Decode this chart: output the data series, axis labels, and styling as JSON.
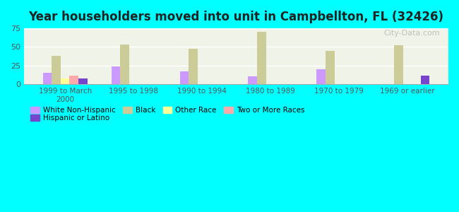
{
  "title": "Year householders moved into unit in Campbellton, FL (32426)",
  "background_color": "#00FFFF",
  "plot_bg_color": "#f0f4e8",
  "categories": [
    "1999 to March\n2000",
    "1995 to 1998",
    "1990 to 1994",
    "1980 to 1989",
    "1970 to 1979",
    "1969 or earlier"
  ],
  "series": {
    "White Non-Hispanic": {
      "color": "#cc99ff",
      "values": [
        15,
        24,
        17,
        11,
        20,
        0
      ]
    },
    "Black": {
      "color": "#cccc99",
      "values": [
        38,
        53,
        48,
        70,
        45,
        52
      ]
    },
    "Other Race": {
      "color": "#ffff99",
      "values": [
        8,
        0,
        0,
        0,
        0,
        0
      ]
    },
    "Two or More Races": {
      "color": "#ffaaaa",
      "values": [
        12,
        0,
        0,
        0,
        0,
        0
      ]
    },
    "Hispanic or Latino": {
      "color": "#7744cc",
      "values": [
        8,
        0,
        0,
        0,
        0,
        12
      ]
    }
  },
  "ylim": [
    0,
    75
  ],
  "yticks": [
    0,
    25,
    50,
    75
  ],
  "watermark": "City-Data.com",
  "legend_items": [
    {
      "label": "White Non-Hispanic",
      "color": "#cc99ff"
    },
    {
      "label": "Black",
      "color": "#cccc99"
    },
    {
      "label": "Other Race",
      "color": "#ffff99"
    },
    {
      "label": "Two or More Races",
      "color": "#ffaaaa"
    },
    {
      "label": "Hispanic or Latino",
      "color": "#7744cc"
    }
  ]
}
